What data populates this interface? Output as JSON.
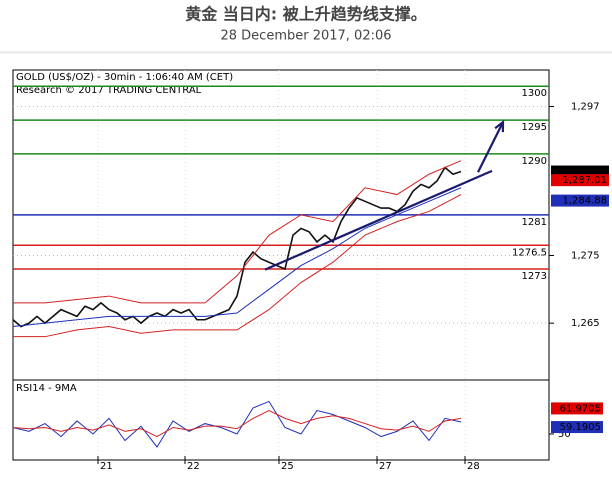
{
  "header": {
    "title": "黄金 当日内: 被上升趋势线支撑。",
    "subtitle": "28 December 2017, 02:06"
  },
  "chart_data": {
    "type": "line",
    "title": "GOLD (US$/OZ) - 30min - 1:06:40 AM (CET)",
    "subtitle": "Research © 2017 TRADING CENTRAL",
    "xlim": [
      0,
      134
    ],
    "xticks": [
      {
        "value": 21.25,
        "label": "21"
      },
      {
        "value": 43,
        "label": "22"
      },
      {
        "value": 66.5,
        "label": "25"
      },
      {
        "value": 91,
        "label": "27"
      },
      {
        "value": 113,
        "label": "28"
      }
    ],
    "ylim": [
      1256.6,
      1302.4
    ],
    "yticks": [
      {
        "value": 1265,
        "label": "1,265"
      },
      {
        "value": 1275,
        "label": "1,275"
      },
      {
        "value": 1297,
        "label": "1,297"
      }
    ],
    "grid": true,
    "series": [
      {
        "name": "Close",
        "color": "#111111",
        "x": [
          0,
          2,
          4,
          6,
          8,
          10,
          12,
          14,
          16,
          18,
          20,
          22,
          24,
          26,
          28,
          30,
          32,
          34,
          36,
          38,
          40,
          42,
          44,
          46,
          48,
          50,
          52,
          54,
          56,
          58,
          60,
          62,
          64,
          66,
          68,
          70,
          72,
          74,
          76,
          78,
          80,
          82,
          84,
          86,
          88,
          90,
          92,
          94,
          96,
          98,
          100,
          102,
          104,
          106,
          108,
          110,
          112
        ],
        "values": [
          1265.5,
          1264.5,
          1265,
          1266,
          1265,
          1266,
          1267,
          1266.5,
          1266,
          1267.5,
          1267,
          1268,
          1267,
          1266.5,
          1265.5,
          1266,
          1265,
          1266,
          1266.5,
          1266,
          1267,
          1266.5,
          1267,
          1265.5,
          1265.5,
          1266,
          1266.5,
          1267,
          1269,
          1274,
          1275.5,
          1274.5,
          1274,
          1273.5,
          1273,
          1278,
          1279,
          1278.5,
          1277,
          1278,
          1277,
          1280,
          1282,
          1283.5,
          1283,
          1282.5,
          1282,
          1282,
          1281.5,
          1282.5,
          1284.5,
          1285.5,
          1285,
          1286,
          1288,
          1287,
          1287.4
        ]
      },
      {
        "name": "MA",
        "color": "#1f2fb8",
        "x": [
          0,
          8,
          16,
          24,
          32,
          40,
          48,
          56,
          64,
          72,
          80,
          88,
          96,
          104,
          112
        ],
        "values": [
          1264.5,
          1265,
          1265.5,
          1266,
          1266,
          1266,
          1266,
          1266.5,
          1270,
          1273.5,
          1276,
          1279,
          1281,
          1283,
          1285
        ]
      },
      {
        "name": "Upper band",
        "color": "#d42020",
        "x": [
          0,
          8,
          16,
          24,
          32,
          40,
          48,
          56,
          64,
          72,
          80,
          88,
          96,
          104,
          112
        ],
        "values": [
          1268,
          1268,
          1268.5,
          1269,
          1268,
          1268,
          1268,
          1272,
          1278,
          1281,
          1280,
          1285,
          1284,
          1287,
          1289
        ]
      },
      {
        "name": "Lower band",
        "color": "#d42020",
        "x": [
          0,
          8,
          16,
          24,
          32,
          40,
          48,
          56,
          64,
          72,
          80,
          88,
          96,
          104,
          112
        ],
        "values": [
          1263,
          1263,
          1264,
          1264.5,
          1263.5,
          1264,
          1264,
          1264,
          1267,
          1271,
          1274,
          1278,
          1280,
          1281.5,
          1284
        ]
      }
    ],
    "levels": [
      1300,
      1295,
      1290,
      1281,
      1276.5,
      1273
    ],
    "level_colors": [
      "#1a8a1a",
      "#1a8a1a",
      "#1a8a1a",
      "#1f2fb8",
      "#d42020",
      "#d42020"
    ],
    "trendline": {
      "color": "#1a1a6e",
      "x": [
        63,
        119.75
      ],
      "values": [
        1272.9,
        1287.5
      ]
    },
    "arrow": {
      "color": "#1a1a6e",
      "x": [
        116.25,
        122.5
      ],
      "values": [
        1287.3,
        1294.7
      ]
    },
    "price_labels": [
      {
        "value": 1287.4,
        "label": "1,287.4",
        "color": "#000000"
      },
      {
        "value": 1287.01,
        "label": "1,287.01",
        "color": "#e00000"
      },
      {
        "value": 1284.88,
        "label": "1,284.88",
        "color": "#1f2fb8"
      }
    ],
    "rsi": {
      "title": "RSI14 - 9MA",
      "ylim": [
        30,
        91.5
      ],
      "yticks": [
        50
      ],
      "series": [
        {
          "name": "RSI14",
          "color": "#1f2fb8",
          "x": [
            0,
            4,
            8,
            12,
            16,
            20,
            24,
            28,
            32,
            36,
            40,
            44,
            48,
            52,
            56,
            60,
            64,
            68,
            72,
            76,
            80,
            84,
            88,
            92,
            96,
            100,
            104,
            108,
            112
          ],
          "values": [
            55,
            52,
            58,
            48,
            60,
            50,
            62,
            45,
            56,
            40,
            60,
            52,
            58,
            55,
            50,
            70,
            75,
            55,
            50,
            68,
            65,
            60,
            55,
            48,
            52,
            60,
            45,
            62,
            59.19
          ]
        },
        {
          "name": "9MA",
          "color": "#d42020",
          "x": [
            0,
            4,
            8,
            12,
            16,
            20,
            24,
            28,
            32,
            36,
            40,
            44,
            48,
            52,
            56,
            60,
            64,
            68,
            72,
            76,
            80,
            84,
            88,
            92,
            96,
            100,
            104,
            108,
            112
          ],
          "values": [
            55,
            54,
            55,
            52,
            55,
            53,
            57,
            52,
            54,
            48,
            55,
            53,
            56,
            56,
            54,
            62,
            68,
            62,
            58,
            62,
            64,
            62,
            58,
            54,
            53,
            56,
            52,
            60,
            61.97
          ]
        }
      ],
      "value_labels": [
        {
          "value": 61.9705,
          "label": "61.9705",
          "color": "#e00000"
        },
        {
          "value": 59.1905,
          "label": "59.1905",
          "color": "#1f2fb8"
        }
      ]
    }
  }
}
